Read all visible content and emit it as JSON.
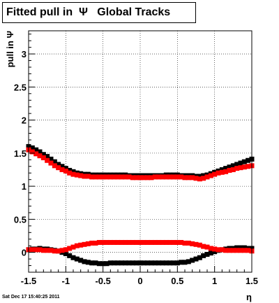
{
  "title": "Fitted pull in  Ψ   Global Tracks",
  "footer": "Sat Dec 17 15:40:25 2011",
  "chart_data": {
    "type": "scatter",
    "title": "Fitted pull in  Ψ   Global Tracks",
    "xlabel": "η",
    "ylabel": "pull in Ψ",
    "xlim": [
      -1.5,
      1.5
    ],
    "ylim": [
      -0.3,
      3.35
    ],
    "x_ticks": [
      -1.5,
      -1,
      -0.5,
      0,
      0.5,
      1,
      1.5
    ],
    "x_tick_labels": [
      "-1.5",
      "-1",
      "-0.5",
      "0",
      "0.5",
      "1",
      "1.5"
    ],
    "y_ticks": [
      0,
      0.5,
      1,
      1.5,
      2,
      2.5,
      3
    ],
    "y_tick_labels": [
      "0",
      "0.5",
      "1",
      "1.5",
      "2",
      "2.5",
      "3"
    ],
    "grid": true,
    "marker": "filled-square",
    "series": [
      {
        "color": "#000000",
        "x": [
          -1.5,
          -1.45,
          -1.4,
          -1.35,
          -1.3,
          -1.25,
          -1.2,
          -1.15,
          -1.1,
          -1.05,
          -1.0,
          -0.95,
          -0.9,
          -0.85,
          -0.8,
          -0.75,
          -0.7,
          -0.65,
          -0.6,
          -0.55,
          -0.5,
          -0.45,
          -0.4,
          -0.35,
          -0.3,
          -0.25,
          -0.2,
          -0.15,
          -0.1,
          -0.05,
          0.0,
          0.05,
          0.1,
          0.15,
          0.2,
          0.25,
          0.3,
          0.35,
          0.4,
          0.45,
          0.5,
          0.55,
          0.6,
          0.65,
          0.7,
          0.75,
          0.8,
          0.85,
          0.9,
          0.95,
          1.0,
          1.05,
          1.1,
          1.15,
          1.2,
          1.25,
          1.3,
          1.35,
          1.4,
          1.45,
          1.5
        ],
        "y": [
          1.6,
          1.58,
          1.55,
          1.52,
          1.48,
          1.45,
          1.41,
          1.37,
          1.33,
          1.3,
          1.27,
          1.24,
          1.22,
          1.2,
          1.19,
          1.18,
          1.18,
          1.17,
          1.17,
          1.17,
          1.17,
          1.17,
          1.17,
          1.17,
          1.17,
          1.17,
          1.17,
          1.16,
          1.16,
          1.16,
          1.16,
          1.16,
          1.16,
          1.16,
          1.16,
          1.16,
          1.16,
          1.17,
          1.17,
          1.17,
          1.17,
          1.16,
          1.16,
          1.16,
          1.16,
          1.15,
          1.15,
          1.16,
          1.17,
          1.19,
          1.21,
          1.23,
          1.25,
          1.27,
          1.29,
          1.31,
          1.33,
          1.35,
          1.37,
          1.39,
          1.41
        ]
      },
      {
        "color": "#ff0000",
        "x": [
          -1.5,
          -1.45,
          -1.4,
          -1.35,
          -1.3,
          -1.25,
          -1.2,
          -1.15,
          -1.1,
          -1.05,
          -1.0,
          -0.95,
          -0.9,
          -0.85,
          -0.8,
          -0.75,
          -0.7,
          -0.65,
          -0.6,
          -0.55,
          -0.5,
          -0.45,
          -0.4,
          -0.35,
          -0.3,
          -0.25,
          -0.2,
          -0.15,
          -0.1,
          -0.05,
          0.0,
          0.05,
          0.1,
          0.15,
          0.2,
          0.25,
          0.3,
          0.35,
          0.4,
          0.45,
          0.5,
          0.55,
          0.6,
          0.65,
          0.7,
          0.75,
          0.8,
          0.85,
          0.9,
          0.95,
          1.0,
          1.05,
          1.1,
          1.15,
          1.2,
          1.25,
          1.3,
          1.35,
          1.4,
          1.45,
          1.5
        ],
        "y": [
          1.55,
          1.52,
          1.49,
          1.46,
          1.43,
          1.39,
          1.35,
          1.31,
          1.28,
          1.25,
          1.23,
          1.2,
          1.18,
          1.17,
          1.16,
          1.15,
          1.15,
          1.14,
          1.14,
          1.14,
          1.14,
          1.14,
          1.14,
          1.14,
          1.14,
          1.14,
          1.14,
          1.14,
          1.13,
          1.13,
          1.13,
          1.13,
          1.13,
          1.13,
          1.14,
          1.14,
          1.14,
          1.14,
          1.14,
          1.14,
          1.14,
          1.14,
          1.13,
          1.13,
          1.13,
          1.12,
          1.11,
          1.12,
          1.14,
          1.16,
          1.18,
          1.2,
          1.21,
          1.22,
          1.24,
          1.25,
          1.27,
          1.28,
          1.29,
          1.3,
          1.31
        ]
      },
      {
        "color": "#000000",
        "x": [
          -1.5,
          -1.45,
          -1.4,
          -1.35,
          -1.3,
          -1.25,
          -1.2,
          -1.15,
          -1.1,
          -1.05,
          -1.0,
          -0.95,
          -0.9,
          -0.85,
          -0.8,
          -0.75,
          -0.7,
          -0.65,
          -0.6,
          -0.55,
          -0.5,
          -0.45,
          -0.4,
          -0.35,
          -0.3,
          -0.25,
          -0.2,
          -0.15,
          -0.1,
          -0.05,
          0.0,
          0.05,
          0.1,
          0.15,
          0.2,
          0.25,
          0.3,
          0.35,
          0.4,
          0.45,
          0.5,
          0.55,
          0.6,
          0.65,
          0.7,
          0.75,
          0.8,
          0.85,
          0.9,
          0.95,
          1.0,
          1.05,
          1.1,
          1.15,
          1.2,
          1.25,
          1.3,
          1.35,
          1.4,
          1.45,
          1.5
        ],
        "y": [
          0.04,
          0.05,
          0.05,
          0.06,
          0.05,
          0.05,
          0.04,
          0.03,
          0.02,
          0.0,
          -0.02,
          -0.05,
          -0.08,
          -0.1,
          -0.12,
          -0.14,
          -0.15,
          -0.16,
          -0.16,
          -0.17,
          -0.17,
          -0.17,
          -0.16,
          -0.16,
          -0.16,
          -0.16,
          -0.16,
          -0.16,
          -0.16,
          -0.16,
          -0.16,
          -0.16,
          -0.16,
          -0.16,
          -0.16,
          -0.16,
          -0.16,
          -0.16,
          -0.16,
          -0.16,
          -0.16,
          -0.15,
          -0.15,
          -0.14,
          -0.12,
          -0.1,
          -0.08,
          -0.05,
          -0.03,
          -0.01,
          0.01,
          0.03,
          0.04,
          0.05,
          0.06,
          0.06,
          0.07,
          0.07,
          0.07,
          0.06,
          0.06
        ]
      },
      {
        "color": "#ff0000",
        "x": [
          -1.5,
          -1.45,
          -1.4,
          -1.35,
          -1.3,
          -1.25,
          -1.2,
          -1.15,
          -1.1,
          -1.05,
          -1.0,
          -0.95,
          -0.9,
          -0.85,
          -0.8,
          -0.75,
          -0.7,
          -0.65,
          -0.6,
          -0.55,
          -0.5,
          -0.45,
          -0.4,
          -0.35,
          -0.3,
          -0.25,
          -0.2,
          -0.15,
          -0.1,
          -0.05,
          0.0,
          0.05,
          0.1,
          0.15,
          0.2,
          0.25,
          0.3,
          0.35,
          0.4,
          0.45,
          0.5,
          0.55,
          0.6,
          0.65,
          0.7,
          0.75,
          0.8,
          0.85,
          0.9,
          0.95,
          1.0,
          1.05,
          1.1,
          1.15,
          1.2,
          1.25,
          1.3,
          1.35,
          1.4,
          1.45,
          1.5
        ],
        "y": [
          0.04,
          0.04,
          0.04,
          0.04,
          0.03,
          0.03,
          0.03,
          0.02,
          0.02,
          0.03,
          0.04,
          0.06,
          0.08,
          0.1,
          0.11,
          0.12,
          0.13,
          0.14,
          0.14,
          0.15,
          0.15,
          0.15,
          0.15,
          0.15,
          0.15,
          0.15,
          0.15,
          0.15,
          0.15,
          0.15,
          0.15,
          0.15,
          0.15,
          0.15,
          0.15,
          0.15,
          0.15,
          0.15,
          0.15,
          0.15,
          0.15,
          0.15,
          0.14,
          0.14,
          0.13,
          0.12,
          0.11,
          0.09,
          0.08,
          0.06,
          0.05,
          0.04,
          0.04,
          0.03,
          0.03,
          0.03,
          0.03,
          0.03,
          0.03,
          0.03,
          0.02
        ]
      }
    ]
  }
}
